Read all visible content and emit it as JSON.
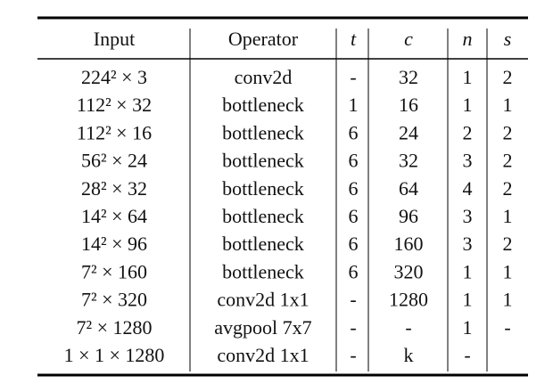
{
  "table": {
    "header": [
      "Input",
      "Operator",
      "t",
      "c",
      "n",
      "s"
    ],
    "rows": [
      [
        "224² × 3",
        "conv2d",
        "-",
        "32",
        "1",
        "2"
      ],
      [
        "112² × 32",
        "bottleneck",
        "1",
        "16",
        "1",
        "1"
      ],
      [
        "112² × 16",
        "bottleneck",
        "6",
        "24",
        "2",
        "2"
      ],
      [
        "56² × 24",
        "bottleneck",
        "6",
        "32",
        "3",
        "2"
      ],
      [
        "28² × 32",
        "bottleneck",
        "6",
        "64",
        "4",
        "2"
      ],
      [
        "14² × 64",
        "bottleneck",
        "6",
        "96",
        "3",
        "1"
      ],
      [
        "14² × 96",
        "bottleneck",
        "6",
        "160",
        "3",
        "2"
      ],
      [
        "7² × 160",
        "bottleneck",
        "6",
        "320",
        "1",
        "1"
      ],
      [
        "7² × 320",
        "conv2d 1x1",
        "-",
        "1280",
        "1",
        "1"
      ],
      [
        "7² × 1280",
        "avgpool 7x7",
        "-",
        "-",
        "1",
        "-"
      ],
      [
        "1 × 1 × 1280",
        "conv2d 1x1",
        "-",
        "k",
        "-",
        null
      ]
    ]
  }
}
